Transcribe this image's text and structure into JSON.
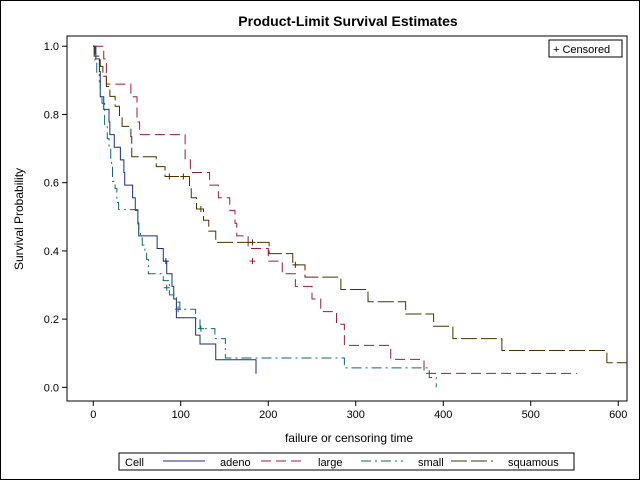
{
  "chart_data": {
    "type": "line",
    "title": "Product-Limit Survival Estimates",
    "xlabel": "failure or censoring time",
    "ylabel": "Survival Probability",
    "xlim": [
      -30,
      610
    ],
    "ylim": [
      -0.04,
      1.03
    ],
    "xticks": [
      0,
      100,
      200,
      300,
      400,
      500,
      600
    ],
    "xtick_labels": [
      "0",
      "100",
      "200",
      "300",
      "400",
      "500",
      "600"
    ],
    "yticks": [
      0.0,
      0.2,
      0.4,
      0.6,
      0.8,
      1.0
    ],
    "ytick_labels": [
      "0.0",
      "0.2",
      "0.4",
      "0.6",
      "0.8",
      "1.0"
    ],
    "censored_legend": "+ Censored",
    "legend_title": "Cell",
    "legend_position": "bottom",
    "series": [
      {
        "name": "adeno",
        "color": "#1a2b8c",
        "dash": "",
        "x": [
          0,
          3,
          7,
          8,
          12,
          18,
          19,
          24,
          31,
          35,
          36,
          45,
          48,
          51,
          52,
          73,
          80,
          84,
          90,
          92,
          95,
          117,
          122,
          140,
          186
        ],
        "y": [
          1.0,
          0.963,
          0.926,
          0.852,
          0.815,
          0.778,
          0.741,
          0.704,
          0.667,
          0.63,
          0.593,
          0.556,
          0.519,
          0.482,
          0.444,
          0.407,
          0.37,
          0.333,
          0.296,
          0.259,
          0.204,
          0.153,
          0.127,
          0.081,
          0.04
        ],
        "end_x": 186,
        "censored": [
          [
            83,
            0.37
          ]
        ]
      },
      {
        "name": "large",
        "color": "#9b1b3a",
        "dash": "10,5",
        "x": [
          0,
          12,
          15,
          22,
          43,
          50,
          53,
          103,
          105,
          111,
          133,
          143,
          156,
          162,
          164,
          177,
          200,
          216,
          231,
          250,
          260,
          278,
          287,
          340,
          378
        ],
        "y": [
          1.0,
          0.963,
          0.889,
          0.889,
          0.852,
          0.778,
          0.741,
          0.741,
          0.667,
          0.63,
          0.593,
          0.556,
          0.519,
          0.481,
          0.444,
          0.407,
          0.37,
          0.333,
          0.296,
          0.259,
          0.222,
          0.185,
          0.123,
          0.082,
          0.041
        ],
        "end_x": 553,
        "censored": [
          [
            182,
            0.37
          ]
        ]
      },
      {
        "name": "small",
        "color": "#0e6a6a",
        "dash": "10,4,2,4",
        "x": [
          0,
          2,
          4,
          7,
          8,
          10,
          13,
          16,
          18,
          20,
          21,
          22,
          25,
          27,
          29,
          30,
          51,
          52,
          54,
          56,
          59,
          61,
          63,
          80,
          87,
          95,
          99,
          117,
          122,
          139,
          151,
          287,
          384,
          392
        ],
        "y": [
          1.0,
          0.958,
          0.917,
          0.896,
          0.854,
          0.833,
          0.771,
          0.729,
          0.708,
          0.667,
          0.646,
          0.604,
          0.583,
          0.542,
          0.521,
          0.521,
          0.479,
          0.458,
          0.438,
          0.417,
          0.396,
          0.375,
          0.333,
          0.313,
          0.271,
          0.25,
          0.229,
          0.201,
          0.172,
          0.143,
          0.086,
          0.057,
          0.029,
          0.0
        ],
        "end_x": 392,
        "censored": [
          [
            84,
            0.292
          ],
          [
            97,
            0.229
          ],
          [
            123,
            0.172
          ]
        ]
      },
      {
        "name": "squamous",
        "color": "#4a3100",
        "dash": "16,4",
        "x": [
          0,
          1,
          8,
          11,
          15,
          19,
          25,
          30,
          33,
          43,
          44,
          72,
          82,
          100,
          110,
          112,
          118,
          126,
          132,
          140,
          162,
          201,
          228,
          242,
          283,
          314,
          357,
          389,
          411,
          467,
          587
        ],
        "y": [
          1.0,
          0.971,
          0.941,
          0.912,
          0.882,
          0.853,
          0.824,
          0.794,
          0.765,
          0.735,
          0.676,
          0.647,
          0.618,
          0.618,
          0.588,
          0.556,
          0.523,
          0.49,
          0.458,
          0.425,
          0.425,
          0.392,
          0.359,
          0.323,
          0.287,
          0.251,
          0.215,
          0.179,
          0.143,
          0.108,
          0.072
        ],
        "end_x": 610,
        "censored": [
          [
            87,
            0.618
          ],
          [
            103,
            0.618
          ],
          [
            123,
            0.523
          ],
          [
            182,
            0.425
          ],
          [
            231,
            0.359
          ]
        ]
      }
    ]
  }
}
